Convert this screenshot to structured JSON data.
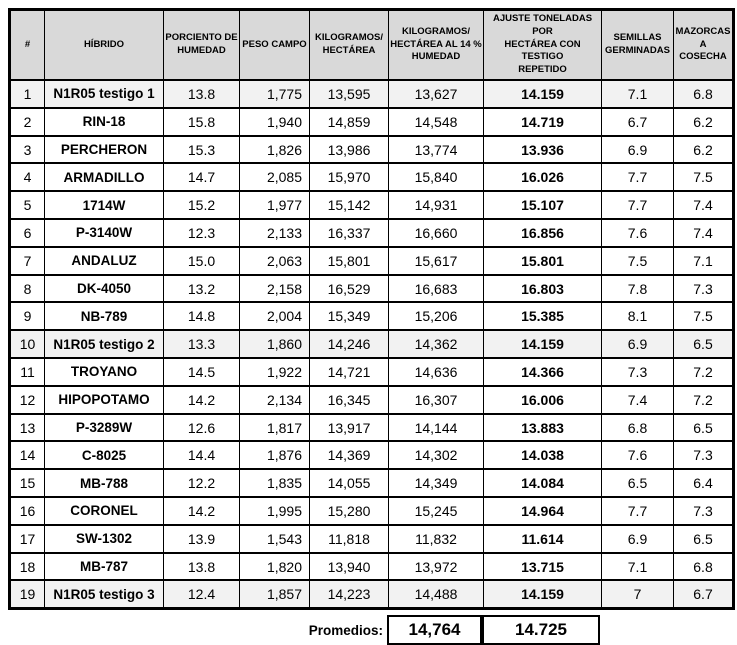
{
  "colors": {
    "header_bg": "#D9D9D9",
    "highlight_row_bg": "#F2F2F2",
    "border": "#000000",
    "text": "#000000"
  },
  "table": {
    "headers": [
      {
        "id": "num",
        "label": "#",
        "lines": [
          "#"
        ]
      },
      {
        "id": "hybrid",
        "label": "HÍBRIDO",
        "lines": [
          "HÍBRIDO"
        ]
      },
      {
        "id": "humedad",
        "label": "PORCIENTO DE HUMEDAD",
        "lines": [
          "PORCIENTO DE",
          "HUMEDAD"
        ]
      },
      {
        "id": "peso",
        "label": "PESO CAMPO",
        "lines": [
          "PESO CAMPO"
        ]
      },
      {
        "id": "kgha",
        "label": "KILOGRAMOS/ HECTÁREA",
        "lines": [
          "KILOGRAMOS/",
          "HECTÁREA"
        ]
      },
      {
        "id": "kgha14",
        "label": "KILOGRAMOS/ HECTÁREA AL 14 % HUMEDAD",
        "lines": [
          "KILOGRAMOS/",
          "HECTÁREA AL 14 %",
          "HUMEDAD"
        ]
      },
      {
        "id": "ajuste",
        "label": "AJUSTE TONELADAS POR HECTÁREA CON TESTIGO REPETIDO",
        "lines": [
          "AJUSTE TONELADAS POR",
          "HECTÁREA CON TESTIGO",
          "REPETIDO"
        ]
      },
      {
        "id": "semillas",
        "label": "SEMILLAS GERMINADAS",
        "lines": [
          "SEMILLAS",
          "GERMINADAS"
        ]
      },
      {
        "id": "mazorcas",
        "label": "MAZORCAS A COSECHA",
        "lines": [
          "MAZORCAS",
          "A COSECHA"
        ]
      }
    ],
    "rows": [
      {
        "num": "1",
        "hybrid": "N1R05 testigo 1",
        "humedad": "13.8",
        "peso": "1,775",
        "kgha": "13,595",
        "kgha14": "13,627",
        "ajuste": "14.159",
        "semillas": "7.1",
        "mazorcas": "6.8",
        "highlighted": true
      },
      {
        "num": "2",
        "hybrid": "RIN-18",
        "humedad": "15.8",
        "peso": "1,940",
        "kgha": "14,859",
        "kgha14": "14,548",
        "ajuste": "14.719",
        "semillas": "6.7",
        "mazorcas": "6.2",
        "highlighted": false
      },
      {
        "num": "3",
        "hybrid": "PERCHERON",
        "humedad": "15.3",
        "peso": "1,826",
        "kgha": "13,986",
        "kgha14": "13,774",
        "ajuste": "13.936",
        "semillas": "6.9",
        "mazorcas": "6.2",
        "highlighted": false
      },
      {
        "num": "4",
        "hybrid": "ARMADILLO",
        "humedad": "14.7",
        "peso": "2,085",
        "kgha": "15,970",
        "kgha14": "15,840",
        "ajuste": "16.026",
        "semillas": "7.7",
        "mazorcas": "7.5",
        "highlighted": false
      },
      {
        "num": "5",
        "hybrid": "1714W",
        "humedad": "15.2",
        "peso": "1,977",
        "kgha": "15,142",
        "kgha14": "14,931",
        "ajuste": "15.107",
        "semillas": "7.7",
        "mazorcas": "7.4",
        "highlighted": false
      },
      {
        "num": "6",
        "hybrid": "P-3140W",
        "humedad": "12.3",
        "peso": "2,133",
        "kgha": "16,337",
        "kgha14": "16,660",
        "ajuste": "16.856",
        "semillas": "7.6",
        "mazorcas": "7.4",
        "highlighted": false
      },
      {
        "num": "7",
        "hybrid": "ANDALUZ",
        "humedad": "15.0",
        "peso": "2,063",
        "kgha": "15,801",
        "kgha14": "15,617",
        "ajuste": "15.801",
        "semillas": "7.5",
        "mazorcas": "7.1",
        "highlighted": false
      },
      {
        "num": "8",
        "hybrid": "DK-4050",
        "humedad": "13.2",
        "peso": "2,158",
        "kgha": "16,529",
        "kgha14": "16,683",
        "ajuste": "16.803",
        "semillas": "7.8",
        "mazorcas": "7.3",
        "highlighted": false
      },
      {
        "num": "9",
        "hybrid": "NB-789",
        "humedad": "14.8",
        "peso": "2,004",
        "kgha": "15,349",
        "kgha14": "15,206",
        "ajuste": "15.385",
        "semillas": "8.1",
        "mazorcas": "7.5",
        "highlighted": false
      },
      {
        "num": "10",
        "hybrid": "N1R05 testigo 2",
        "humedad": "13.3",
        "peso": "1,860",
        "kgha": "14,246",
        "kgha14": "14,362",
        "ajuste": "14.159",
        "semillas": "6.9",
        "mazorcas": "6.5",
        "highlighted": true
      },
      {
        "num": "11",
        "hybrid": "TROYANO",
        "humedad": "14.5",
        "peso": "1,922",
        "kgha": "14,721",
        "kgha14": "14,636",
        "ajuste": "14.366",
        "semillas": "7.3",
        "mazorcas": "7.2",
        "highlighted": false
      },
      {
        "num": "12",
        "hybrid": "HIPOPOTAMO",
        "humedad": "14.2",
        "peso": "2,134",
        "kgha": "16,345",
        "kgha14": "16,307",
        "ajuste": "16.006",
        "semillas": "7.4",
        "mazorcas": "7.2",
        "highlighted": false
      },
      {
        "num": "13",
        "hybrid": "P-3289W",
        "humedad": "12.6",
        "peso": "1,817",
        "kgha": "13,917",
        "kgha14": "14,144",
        "ajuste": "13.883",
        "semillas": "6.8",
        "mazorcas": "6.5",
        "highlighted": false
      },
      {
        "num": "14",
        "hybrid": "C-8025",
        "humedad": "14.4",
        "peso": "1,876",
        "kgha": "14,369",
        "kgha14": "14,302",
        "ajuste": "14.038",
        "semillas": "7.6",
        "mazorcas": "7.3",
        "highlighted": false
      },
      {
        "num": "15",
        "hybrid": "MB-788",
        "humedad": "12.2",
        "peso": "1,835",
        "kgha": "14,055",
        "kgha14": "14,349",
        "ajuste": "14.084",
        "semillas": "6.5",
        "mazorcas": "6.4",
        "highlighted": false
      },
      {
        "num": "16",
        "hybrid": "CORONEL",
        "humedad": "14.2",
        "peso": "1,995",
        "kgha": "15,280",
        "kgha14": "15,245",
        "ajuste": "14.964",
        "semillas": "7.7",
        "mazorcas": "7.3",
        "highlighted": false
      },
      {
        "num": "17",
        "hybrid": "SW-1302",
        "humedad": "13.9",
        "peso": "1,543",
        "kgha": "11,818",
        "kgha14": "11,832",
        "ajuste": "11.614",
        "semillas": "6.9",
        "mazorcas": "6.5",
        "highlighted": false
      },
      {
        "num": "18",
        "hybrid": "MB-787",
        "humedad": "13.8",
        "peso": "1,820",
        "kgha": "13,940",
        "kgha14": "13,972",
        "ajuste": "13.715",
        "semillas": "7.1",
        "mazorcas": "6.8",
        "highlighted": false
      },
      {
        "num": "19",
        "hybrid": "N1R05 testigo 3",
        "humedad": "12.4",
        "peso": "1,857",
        "kgha": "14,223",
        "kgha14": "14,488",
        "ajuste": "14.159",
        "semillas": "7",
        "mazorcas": "6.7",
        "highlighted": true
      }
    ]
  },
  "footer": {
    "label": "Promedios:",
    "kgha14_avg": "14,764",
    "ajuste_avg": "14.725"
  }
}
